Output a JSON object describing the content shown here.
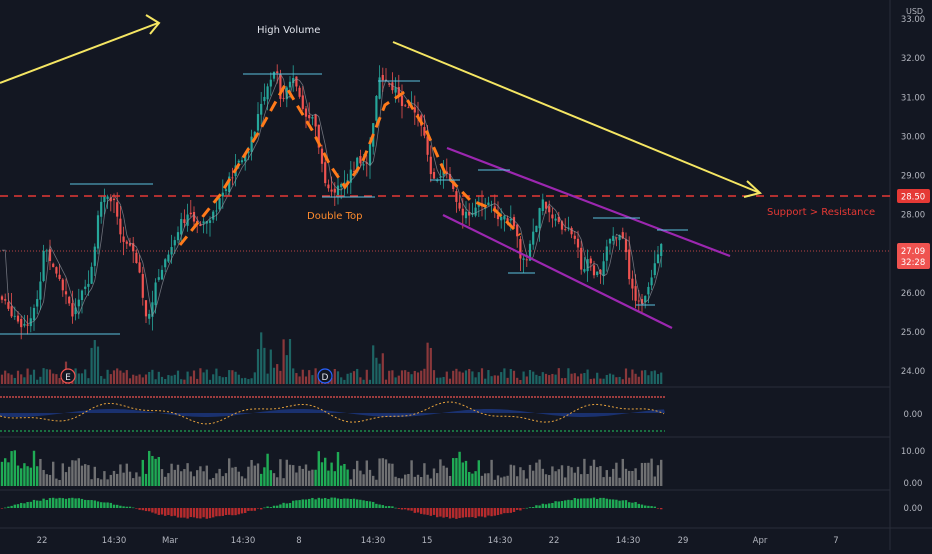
{
  "currency": "USD",
  "colors": {
    "background": "#131722",
    "up": "#26a69a",
    "down": "#ef5350",
    "trend_arrow": "#f5e663",
    "channel": "#9c27b0",
    "dashed_pattern": "#ff7a1a",
    "support_line": "#e53935",
    "level_line": "#5bc0de",
    "current_price_bg": "#ef5350",
    "label_text": "#e0e3eb",
    "hist_green": "#22c55e",
    "hist_gray": "#808080"
  },
  "price_axis": {
    "ticks": [
      "33.00",
      "32.00",
      "31.00",
      "30.00",
      "29.00",
      "28.00",
      "27.00",
      "26.00",
      "25.00",
      "24.00"
    ],
    "support_badge": "28.50",
    "current_price": "27.09",
    "countdown": "32:28"
  },
  "time_axis": {
    "labels": [
      "22",
      "14:30",
      "Mar",
      "14:30",
      "8",
      "14:30",
      "15",
      "14:30",
      "22",
      "14:30",
      "29",
      "Apr",
      "7"
    ]
  },
  "annotations": {
    "high_volume": "High Volume",
    "double_top": "Double Top",
    "support_resistance": "Support > Resistance"
  },
  "event_markers": [
    "E",
    "D"
  ],
  "indicator_axes": {
    "osc_zero": "0.00",
    "hist_top": "10.00",
    "hist_zero": "0.00",
    "macd_zero": "0.00"
  },
  "chart_data": {
    "type": "candlestick",
    "y_axis_range": [
      23.7,
      33.4
    ],
    "support_resistance_level": 28.5,
    "current_price": 27.09,
    "close_path": [
      [
        0,
        25.9
      ],
      [
        8,
        25.6
      ],
      [
        16,
        25.4
      ],
      [
        22,
        25.2
      ],
      [
        30,
        25.3
      ],
      [
        38,
        25.8
      ],
      [
        44,
        27.2
      ],
      [
        52,
        26.8
      ],
      [
        60,
        26.4
      ],
      [
        66,
        25.9
      ],
      [
        72,
        25.4
      ],
      [
        80,
        25.9
      ],
      [
        88,
        26.2
      ],
      [
        94,
        27.1
      ],
      [
        100,
        28.3
      ],
      [
        108,
        28.5
      ],
      [
        116,
        28.2
      ],
      [
        122,
        27.3
      ],
      [
        130,
        27.2
      ],
      [
        138,
        26.7
      ],
      [
        146,
        25.4
      ],
      [
        150,
        25.6
      ],
      [
        158,
        26.4
      ],
      [
        166,
        26.9
      ],
      [
        172,
        27.2
      ],
      [
        180,
        27.8
      ],
      [
        188,
        28.0
      ],
      [
        196,
        27.7
      ],
      [
        204,
        27.9
      ],
      [
        212,
        28.0
      ],
      [
        220,
        28.4
      ],
      [
        228,
        28.8
      ],
      [
        236,
        29.2
      ],
      [
        244,
        29.5
      ],
      [
        252,
        29.9
      ],
      [
        260,
        30.7
      ],
      [
        268,
        31.2
      ],
      [
        276,
        31.7
      ],
      [
        282,
        30.8
      ],
      [
        288,
        31.5
      ],
      [
        296,
        31.4
      ],
      [
        304,
        30.5
      ],
      [
        312,
        30.6
      ],
      [
        320,
        29.7
      ],
      [
        326,
        28.8
      ],
      [
        334,
        28.6
      ],
      [
        342,
        28.8
      ],
      [
        350,
        29.0
      ],
      [
        358,
        29.4
      ],
      [
        366,
        29.2
      ],
      [
        372,
        30.0
      ],
      [
        378,
        31.5
      ],
      [
        386,
        31.3
      ],
      [
        394,
        31.2
      ],
      [
        402,
        30.9
      ],
      [
        410,
        30.8
      ],
      [
        418,
        30.5
      ],
      [
        424,
        30.0
      ],
      [
        430,
        29.2
      ],
      [
        436,
        28.9
      ],
      [
        442,
        29.1
      ],
      [
        450,
        28.8
      ],
      [
        458,
        28.2
      ],
      [
        466,
        28.0
      ],
      [
        474,
        28.1
      ],
      [
        482,
        28.2
      ],
      [
        490,
        28.3
      ],
      [
        498,
        28.0
      ],
      [
        506,
        27.9
      ],
      [
        514,
        27.7
      ],
      [
        520,
        27.0
      ],
      [
        526,
        26.8
      ],
      [
        534,
        27.6
      ],
      [
        542,
        28.3
      ],
      [
        550,
        28.1
      ],
      [
        558,
        27.7
      ],
      [
        566,
        27.6
      ],
      [
        574,
        27.5
      ],
      [
        582,
        26.6
      ],
      [
        590,
        26.8
      ],
      [
        596,
        26.4
      ],
      [
        602,
        26.5
      ],
      [
        610,
        27.5
      ],
      [
        618,
        27.4
      ],
      [
        624,
        27.3
      ],
      [
        630,
        26.3
      ],
      [
        636,
        25.7
      ],
      [
        642,
        25.8
      ],
      [
        650,
        26.3
      ],
      [
        656,
        27.0
      ],
      [
        662,
        27.3
      ],
      [
        666,
        27.09
      ]
    ]
  }
}
